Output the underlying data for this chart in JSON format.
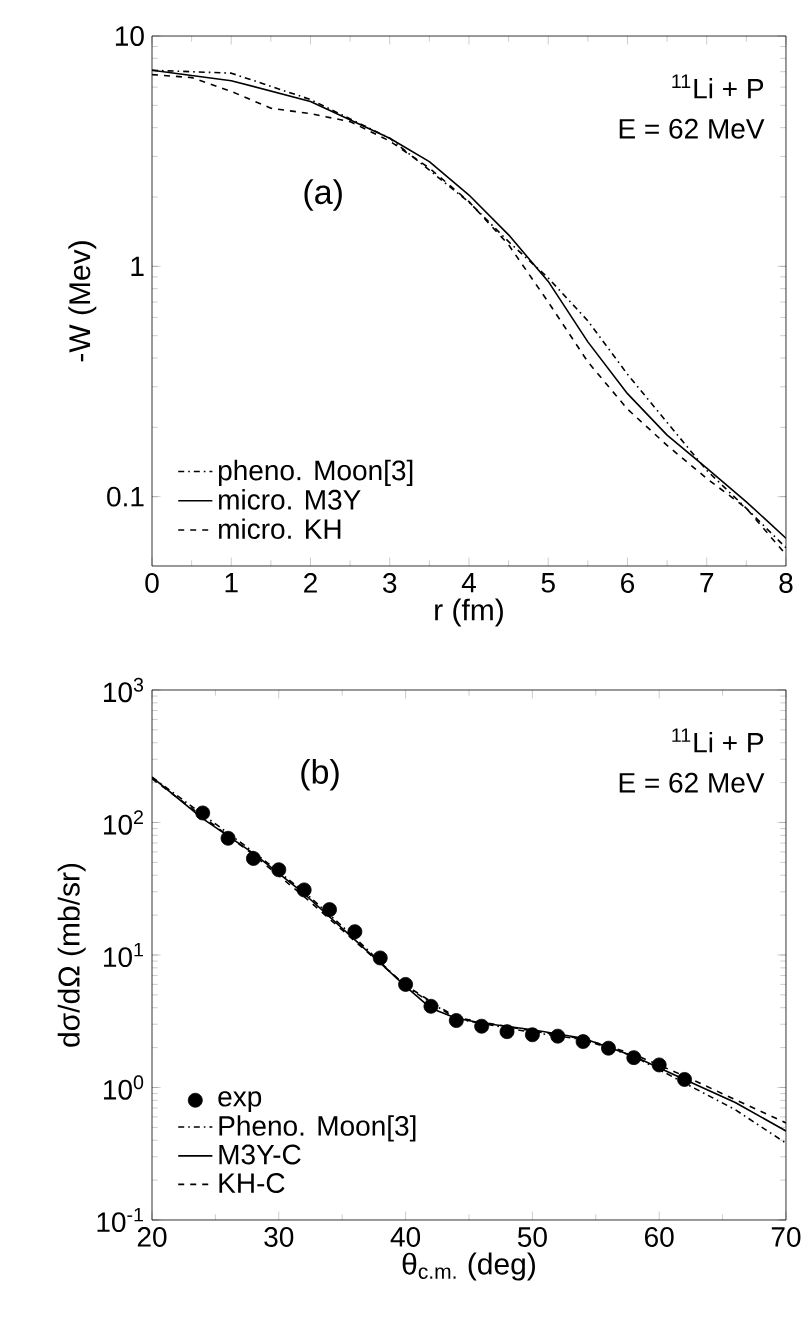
{
  "chart_data": [
    {
      "type": "line",
      "xlabel": "r (fm)",
      "ylabel": "-W (Mev)",
      "log": "y",
      "legend": "bottom left",
      "annotations": [
        "$^{11}$Li + P",
        "E = 62 MeV",
        "(a)"
      ],
      "xlim": [
        0,
        8
      ],
      "xticks": [
        0,
        1,
        2,
        3,
        4,
        5,
        6,
        7,
        8
      ],
      "ylim": [
        0.05,
        10
      ],
      "yticks": [
        0.1,
        1,
        10
      ],
      "series": [
        {
          "name": "pheno. Moon[3]",
          "color": "#000000",
          "line_style": "dashdot",
          "x": [
            0,
            1,
            2,
            3,
            4,
            4.5,
            5,
            5.5,
            6,
            6.5,
            7,
            7.5,
            8
          ],
          "values": [
            7.1,
            6.9,
            5.3,
            3.6,
            1.9,
            1.28,
            0.89,
            0.58,
            0.34,
            0.21,
            0.13,
            0.089,
            0.06
          ]
        },
        {
          "name": "micro. M3Y",
          "color": "#000000",
          "line_style": "solid",
          "x": [
            0,
            1,
            2,
            3,
            3.5,
            4,
            4.5,
            5,
            5.5,
            6,
            6.5,
            7,
            7.5,
            8
          ],
          "values": [
            7.1,
            6.4,
            5.2,
            3.6,
            2.85,
            2.04,
            1.37,
            0.86,
            0.47,
            0.28,
            0.185,
            0.133,
            0.095,
            0.066
          ]
        },
        {
          "name": "micro. KH",
          "color": "#000000",
          "line_style": "dashed",
          "x": [
            0,
            0.5,
            1,
            1.5,
            2,
            2.5,
            3,
            3.5,
            4,
            4.5,
            5,
            5.5,
            6,
            6.5,
            7,
            7.5,
            8
          ],
          "values": [
            6.8,
            6.6,
            5.75,
            4.86,
            4.6,
            4.25,
            3.5,
            2.67,
            1.91,
            1.24,
            0.7,
            0.385,
            0.24,
            0.167,
            0.12,
            0.089,
            0.056
          ]
        }
      ]
    },
    {
      "type": "line",
      "xlabel": "θ$_{c.m.}$ (deg)",
      "ylabel": "dσ/dΩ (mb/sr)",
      "log": "y",
      "legend": "bottom left",
      "annotations": [
        "$^{11}$Li + P",
        "E = 62 MeV",
        "(b)"
      ],
      "xlim": [
        20,
        70
      ],
      "xticks": [
        20,
        30,
        40,
        50,
        60,
        70
      ],
      "ylim": [
        0.1,
        1000
      ],
      "yticks": [
        {
          "value": 0.1,
          "label": "10$^{-1}$"
        },
        {
          "value": 1,
          "label": "10$^{0}$"
        },
        {
          "value": 10,
          "label": "10$^{1}$"
        },
        {
          "value": 100,
          "label": "10$^{2}$"
        },
        {
          "value": 1000,
          "label": "10$^{3}$"
        }
      ],
      "series": [
        {
          "name": "exp",
          "type": "scatter",
          "marker": "circle",
          "color": "#000000",
          "x": [
            24,
            26,
            28,
            30,
            32,
            34,
            36,
            38,
            40,
            42,
            44,
            46,
            48,
            50,
            52,
            54,
            56,
            58,
            60,
            62
          ],
          "values": [
            118,
            76,
            53.5,
            44,
            31,
            22,
            15,
            9.5,
            6.0,
            4.1,
            3.2,
            2.9,
            2.64,
            2.5,
            2.44,
            2.22,
            1.98,
            1.68,
            1.48,
            1.15
          ]
        },
        {
          "name": "Pheno. Moon[3]",
          "color": "#000000",
          "line_style": "dashdot",
          "x": [
            20,
            24,
            28,
            32,
            36,
            40,
            44,
            50,
            54,
            58,
            62,
            66,
            70
          ],
          "values": [
            220,
            115,
            60,
            30,
            13.5,
            5.8,
            3.3,
            2.6,
            2.3,
            1.72,
            1.08,
            0.68,
            0.38
          ]
        },
        {
          "name": "M3Y-C",
          "color": "#000000",
          "line_style": "solid",
          "x": [
            20,
            24,
            28,
            32,
            36,
            38,
            40,
            42,
            44,
            46,
            50,
            54,
            58,
            62,
            66,
            70
          ],
          "values": [
            220,
            107,
            58.5,
            29,
            13,
            8.7,
            5.8,
            3.96,
            3.33,
            3.07,
            2.73,
            2.35,
            1.72,
            1.15,
            0.77,
            0.47
          ]
        },
        {
          "name": "KH-C",
          "color": "#000000",
          "line_style": "dashed",
          "x": [
            20,
            24,
            28,
            32,
            36,
            40,
            44,
            50,
            54,
            58,
            62,
            66,
            70
          ],
          "values": [
            214,
            111,
            57,
            27.6,
            12.7,
            5.9,
            3.37,
            2.67,
            2.33,
            1.78,
            1.22,
            0.81,
            0.54
          ]
        }
      ]
    }
  ]
}
